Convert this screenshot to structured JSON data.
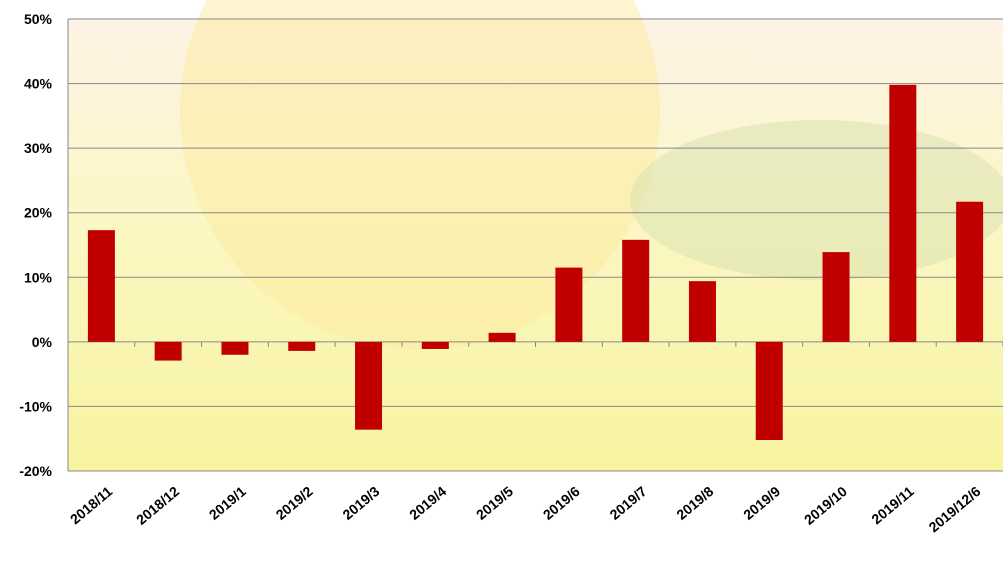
{
  "chart_data": {
    "type": "bar",
    "categories": [
      "2018/11",
      "2018/12",
      "2019/1",
      "2019/2",
      "2019/3",
      "2019/4",
      "2019/5",
      "2019/6",
      "2019/7",
      "2019/8",
      "2019/9",
      "2019/10",
      "2019/11",
      "2019/12/6"
    ],
    "values": [
      17.3,
      -2.9,
      -2.0,
      -1.4,
      -13.6,
      -1.1,
      1.4,
      11.5,
      15.8,
      9.4,
      -15.2,
      13.9,
      39.8,
      21.7
    ],
    "color": "#c00000",
    "ylim": [
      -20,
      50
    ],
    "yticks": [
      {
        "value": -20,
        "label": "-20%"
      },
      {
        "value": -10,
        "label": "-10%"
      },
      {
        "value": 0,
        "label": "0%"
      },
      {
        "value": 10,
        "label": "10%"
      },
      {
        "value": 20,
        "label": "20%"
      },
      {
        "value": 30,
        "label": "30%"
      },
      {
        "value": 40,
        "label": "40%"
      },
      {
        "value": 50,
        "label": "50%"
      }
    ],
    "grid": true
  }
}
